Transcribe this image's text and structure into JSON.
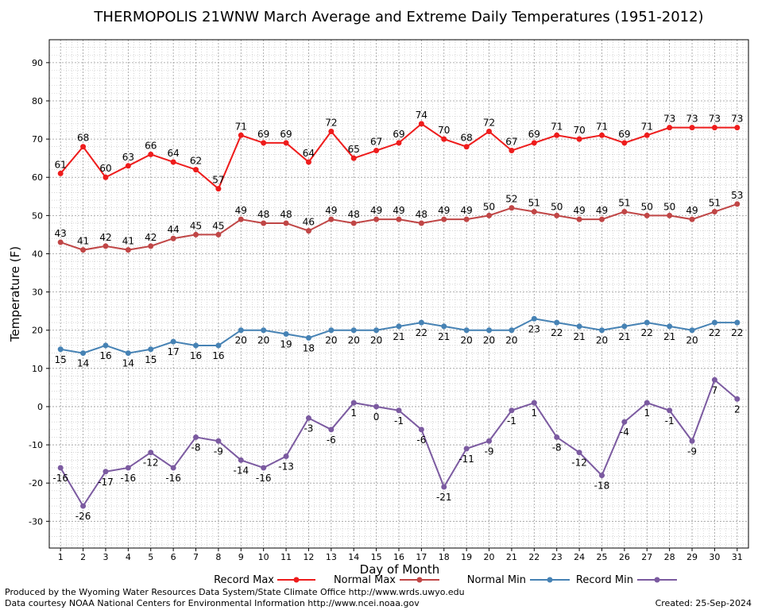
{
  "chart_data": {
    "type": "line",
    "title": "THERMOPOLIS 21WNW March Average and Extreme Daily Temperatures (1951-2012)",
    "xlabel": "Day of Month",
    "ylabel": "Temperature (F)",
    "xlim": [
      0.5,
      31.5
    ],
    "ylim": [
      -37,
      96
    ],
    "y_ticks": [
      -30,
      -20,
      -10,
      0,
      10,
      20,
      30,
      40,
      50,
      60,
      70,
      80,
      90
    ],
    "x": [
      1,
      2,
      3,
      4,
      5,
      6,
      7,
      8,
      9,
      10,
      11,
      12,
      13,
      14,
      15,
      16,
      17,
      18,
      19,
      20,
      21,
      22,
      23,
      24,
      25,
      26,
      27,
      28,
      29,
      30,
      31
    ],
    "grid": true,
    "legend_position": "bottom",
    "series": [
      {
        "name": "Record Max",
        "color": "#ee1c1c",
        "label_position": "above",
        "values": [
          61,
          68,
          60,
          63,
          66,
          64,
          62,
          57,
          71,
          69,
          69,
          64,
          72,
          65,
          67,
          69,
          74,
          70,
          68,
          72,
          67,
          69,
          71,
          70,
          71,
          69,
          71,
          73,
          73,
          73,
          73
        ]
      },
      {
        "name": "Normal Max",
        "color": "#c04646",
        "label_position": "above",
        "values": [
          43,
          41,
          42,
          41,
          42,
          44,
          45,
          45,
          49,
          48,
          48,
          46,
          49,
          48,
          49,
          49,
          48,
          49,
          49,
          50,
          52,
          51,
          50,
          49,
          49,
          51,
          50,
          50,
          49,
          51,
          53
        ]
      },
      {
        "name": "Normal Min",
        "color": "#4682b4",
        "label_position": "below",
        "values": [
          15,
          14,
          16,
          14,
          15,
          17,
          16,
          16,
          20,
          20,
          19,
          18,
          20,
          20,
          20,
          21,
          22,
          21,
          20,
          20,
          20,
          23,
          22,
          21,
          20,
          21,
          22,
          21,
          20,
          22,
          22
        ]
      },
      {
        "name": "Record Min",
        "color": "#7b5aa0",
        "label_position": "below",
        "values": [
          -16,
          -26,
          -17,
          -16,
          -12,
          -16,
          -8,
          -9,
          -14,
          -16,
          -13,
          -3,
          -6,
          1,
          0,
          -1,
          -6,
          -21,
          -11,
          -9,
          -1,
          1,
          -8,
          -12,
          -18,
          -4,
          1,
          -1,
          -9,
          7,
          2
        ]
      }
    ]
  },
  "footer": {
    "left_line1": "Produced by the Wyoming Water Resources Data System/State Climate Office http://www.wrds.uwyo.edu",
    "left_line2": "Data courtesy NOAA National Centers for Environmental Information http://www.ncei.noaa.gov",
    "created": "Created: 25-Sep-2024"
  }
}
